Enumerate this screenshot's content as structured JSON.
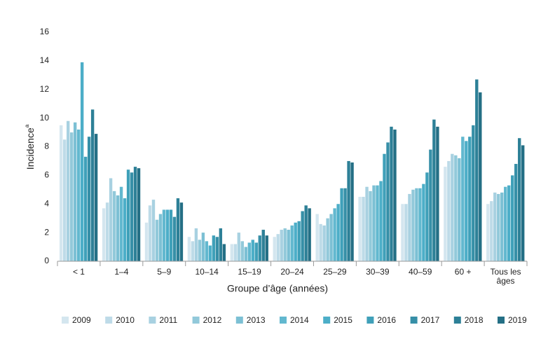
{
  "chart_data": {
    "type": "bar",
    "ylabel": "Incidence",
    "ylabel_sup": "a",
    "xlabel": "Groupe d’âge (années)",
    "categories": [
      "< 1",
      "1–4",
      "5–9",
      "10–14",
      "15–19",
      "20–24",
      "25–29",
      "30–39",
      "40–59",
      "60 +",
      "Tous les âges"
    ],
    "ylim": [
      0,
      16
    ],
    "yticks": [
      0,
      2,
      4,
      6,
      8,
      10,
      12,
      14,
      16
    ],
    "grid": false,
    "series": [
      {
        "name": "2009",
        "color": "#d4e6ef",
        "values": [
          9.5,
          3.7,
          2.7,
          1.7,
          1.2,
          1.7,
          3.3,
          4.5,
          4.0,
          6.6,
          4.0
        ]
      },
      {
        "name": "2010",
        "color": "#bedbe8",
        "values": [
          8.5,
          4.1,
          3.9,
          1.4,
          1.2,
          1.9,
          2.6,
          4.5,
          4.0,
          7.0,
          4.2
        ]
      },
      {
        "name": "2011",
        "color": "#a8d1e1",
        "values": [
          9.8,
          5.8,
          4.3,
          2.3,
          2.0,
          2.2,
          2.5,
          5.2,
          4.7,
          7.5,
          4.8
        ]
      },
      {
        "name": "2012",
        "color": "#92c9da",
        "values": [
          9.0,
          4.9,
          2.9,
          1.5,
          1.4,
          2.3,
          3.0,
          4.9,
          5.0,
          7.4,
          4.7
        ]
      },
      {
        "name": "2013",
        "color": "#7cc0d4",
        "values": [
          9.7,
          4.6,
          3.3,
          2.0,
          1.0,
          2.2,
          3.3,
          5.3,
          5.1,
          7.2,
          4.8
        ]
      },
      {
        "name": "2014",
        "color": "#62b8cf",
        "values": [
          9.2,
          5.2,
          3.6,
          1.4,
          1.3,
          2.5,
          3.7,
          5.3,
          5.1,
          8.7,
          5.2
        ]
      },
      {
        "name": "2015",
        "color": "#4caec8",
        "values": [
          13.9,
          4.4,
          3.6,
          1.1,
          1.5,
          2.7,
          4.0,
          5.6,
          5.4,
          8.4,
          5.3
        ]
      },
      {
        "name": "2016",
        "color": "#3fa0b9",
        "values": [
          7.3,
          6.4,
          3.6,
          1.8,
          1.3,
          2.8,
          5.1,
          7.5,
          6.2,
          8.7,
          6.0
        ]
      },
      {
        "name": "2017",
        "color": "#368fa7",
        "values": [
          8.7,
          6.2,
          3.1,
          1.7,
          1.8,
          3.5,
          5.1,
          8.3,
          7.8,
          9.5,
          6.8
        ]
      },
      {
        "name": "2018",
        "color": "#2d8097",
        "values": [
          10.6,
          6.6,
          4.4,
          2.3,
          2.2,
          3.9,
          7.0,
          9.4,
          9.9,
          12.7,
          8.6
        ]
      },
      {
        "name": "2019",
        "color": "#246f85",
        "values": [
          8.9,
          6.5,
          4.1,
          1.2,
          1.8,
          3.7,
          6.9,
          9.2,
          9.4,
          11.8,
          8.1
        ]
      }
    ]
  }
}
